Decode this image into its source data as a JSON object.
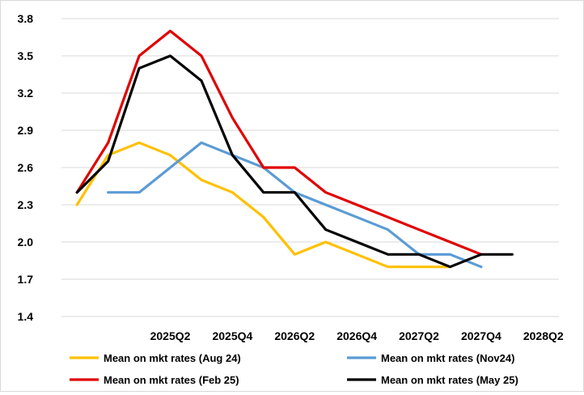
{
  "chart_data": {
    "type": "line",
    "title": "",
    "xlabel": "",
    "ylabel": "",
    "ylim": [
      1.4,
      3.8
    ],
    "y_ticks": [
      "1.4",
      "1.7",
      "2.0",
      "2.3",
      "2.6",
      "2.9",
      "3.2",
      "3.5",
      "3.8"
    ],
    "x": [
      "2024Q3",
      "2024Q4",
      "2025Q1",
      "2025Q2",
      "2025Q3",
      "2025Q4",
      "2026Q1",
      "2026Q2",
      "2026Q3",
      "2026Q4",
      "2027Q1",
      "2027Q2",
      "2027Q3",
      "2027Q4",
      "2028Q1",
      "2028Q2"
    ],
    "x_tick_labels": [
      "2025Q2",
      "2025Q4",
      "2026Q2",
      "2026Q4",
      "2027Q2",
      "2027Q4",
      "2028Q2"
    ],
    "grid": "horizontal",
    "legend_position": "bottom",
    "series": [
      {
        "name": "Mean on mkt rates (Aug 24)",
        "color": "#ffc000",
        "values": [
          2.3,
          2.7,
          2.8,
          2.7,
          2.5,
          2.4,
          2.2,
          1.9,
          2.0,
          1.9,
          1.8,
          1.8,
          1.8,
          null,
          null,
          null
        ]
      },
      {
        "name": "Mean on mkt rates (Nov24)",
        "color": "#5b9bd5",
        "values": [
          null,
          2.4,
          2.4,
          2.6,
          2.8,
          2.7,
          2.6,
          2.4,
          2.3,
          2.2,
          2.1,
          1.9,
          1.9,
          1.8,
          null,
          null
        ]
      },
      {
        "name": "Mean on mkt rates (Feb 25)",
        "color": "#e00000",
        "values": [
          2.4,
          2.8,
          3.5,
          3.7,
          3.5,
          3.0,
          2.6,
          2.6,
          2.4,
          2.3,
          2.2,
          2.1,
          2.0,
          1.9,
          null,
          null
        ]
      },
      {
        "name": "Mean on mkt rates (May 25)",
        "color": "#000000",
        "values": [
          2.4,
          2.65,
          3.4,
          3.5,
          3.3,
          2.7,
          2.4,
          2.4,
          2.1,
          2.0,
          1.9,
          1.9,
          1.8,
          1.9,
          1.9,
          null
        ]
      }
    ]
  }
}
